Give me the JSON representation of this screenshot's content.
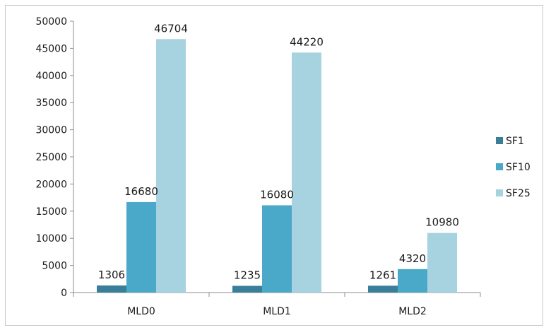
{
  "chart_data": {
    "type": "bar",
    "categories": [
      "MLD0",
      "MLD1",
      "MLD2"
    ],
    "series": [
      {
        "name": "SF1",
        "values": [
          1306,
          1235,
          1261
        ],
        "color": "#3a7f9a"
      },
      {
        "name": "SF10",
        "values": [
          16680,
          16080,
          4320
        ],
        "color": "#4aa8c8"
      },
      {
        "name": "SF25",
        "values": [
          46704,
          44220,
          10980
        ],
        "color": "#a7d2e0"
      }
    ],
    "data_labels": [
      [
        "1306",
        "16680",
        "46704"
      ],
      [
        "1235",
        "16080",
        "44220"
      ],
      [
        "1261",
        "4320",
        "10980"
      ]
    ],
    "yticks": [
      "0",
      "5000",
      "10000",
      "15000",
      "20000",
      "25000",
      "30000",
      "35000",
      "40000",
      "45000",
      "50000"
    ],
    "ylim": [
      0,
      50000
    ],
    "grid": false,
    "legend_position": "right",
    "title": "",
    "xlabel": "",
    "ylabel": ""
  }
}
